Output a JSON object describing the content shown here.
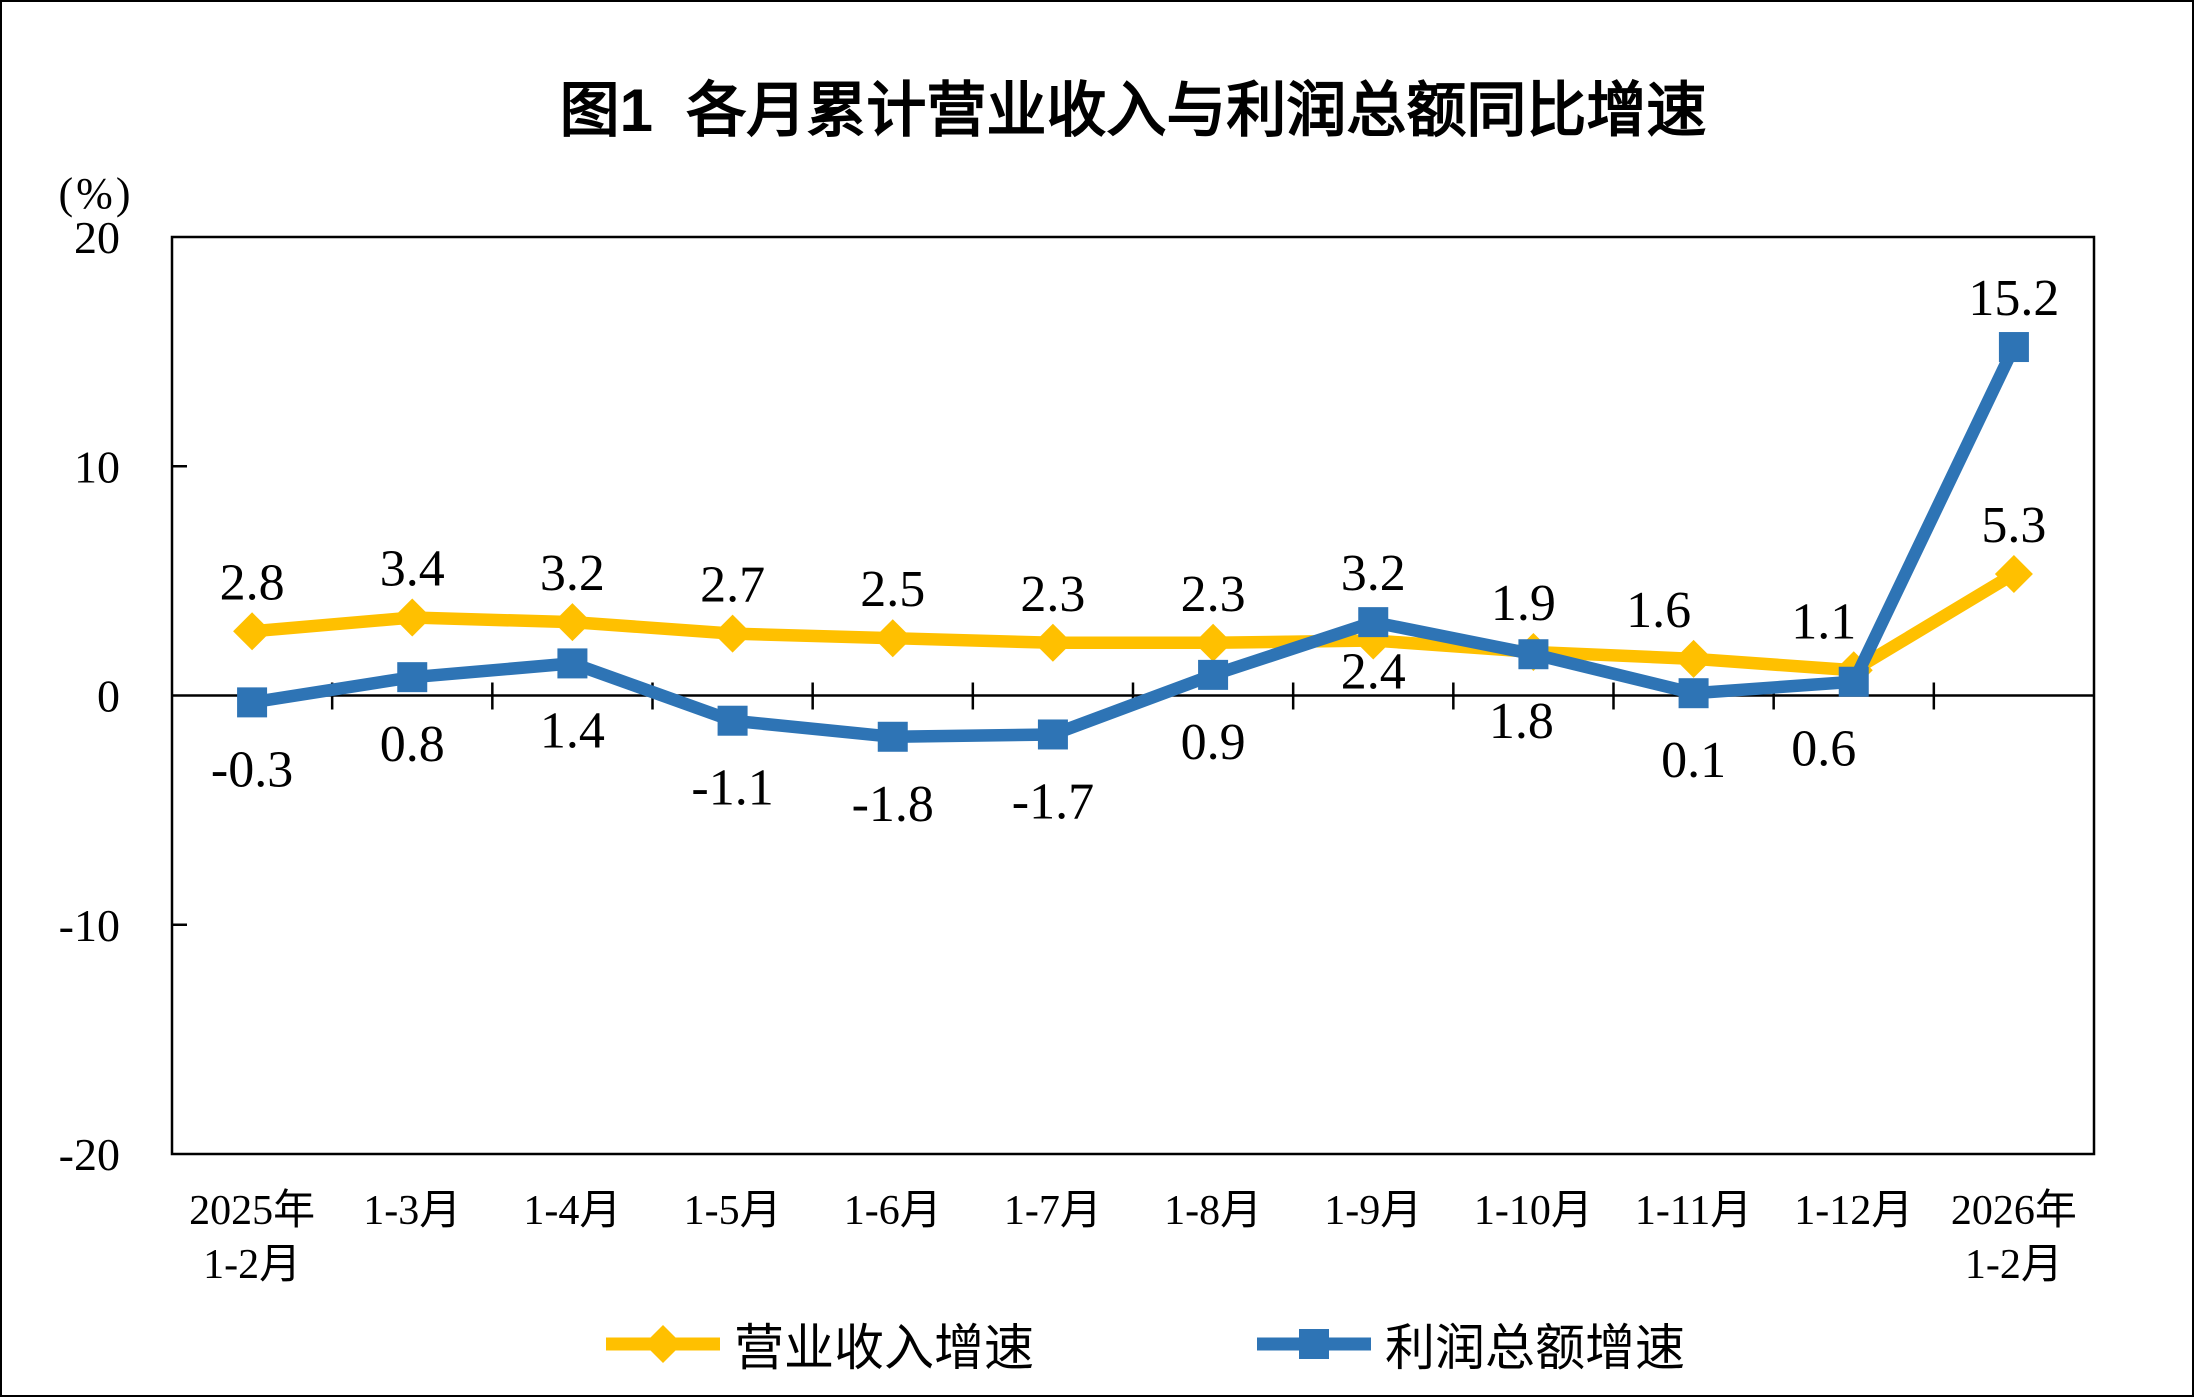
{
  "chart_data": {
    "type": "line",
    "title": "图1  各月累计营业收入与利润总额同比增速",
    "ylabel": "(%)",
    "ylim": [
      -20,
      20
    ],
    "y_ticks": [
      20,
      10,
      0,
      -10,
      -20
    ],
    "grid": false,
    "legend_position": "bottom",
    "categories": [
      "2025年\n1-2月",
      "1-3月",
      "1-4月",
      "1-5月",
      "1-6月",
      "1-7月",
      "1-8月",
      "1-9月",
      "1-10月",
      "1-11月",
      "1-12月",
      "2026年\n1-2月"
    ],
    "series": [
      {
        "name": "营业收入增速",
        "color": "#FFC000",
        "marker": "diamond",
        "values": [
          2.8,
          3.4,
          3.2,
          2.7,
          2.5,
          2.3,
          2.3,
          2.4,
          1.9,
          1.6,
          1.1,
          5.3
        ],
        "label_side": [
          "above",
          "above",
          "above",
          "above",
          "above",
          "above",
          "above",
          "below",
          "above",
          "above",
          "above",
          "above"
        ],
        "label_dx": [
          0,
          0,
          0,
          0,
          0,
          0,
          0,
          0,
          -10,
          -35,
          -30,
          0
        ],
        "label_dy_override": {
          "7": 48
        }
      },
      {
        "name": "利润总额增速",
        "color": "#2E74B5",
        "marker": "square",
        "values": [
          -0.3,
          0.8,
          1.4,
          -1.1,
          -1.8,
          -1.7,
          0.9,
          3.2,
          1.8,
          0.1,
          0.6,
          15.2
        ],
        "label_side": [
          "below",
          "below",
          "below",
          "below",
          "below",
          "below",
          "below",
          "above",
          "below",
          "below",
          "below",
          "above"
        ],
        "label_dx": [
          0,
          0,
          0,
          0,
          0,
          0,
          0,
          0,
          -12,
          0,
          -30,
          0
        ],
        "label_dy_override": {}
      }
    ]
  }
}
